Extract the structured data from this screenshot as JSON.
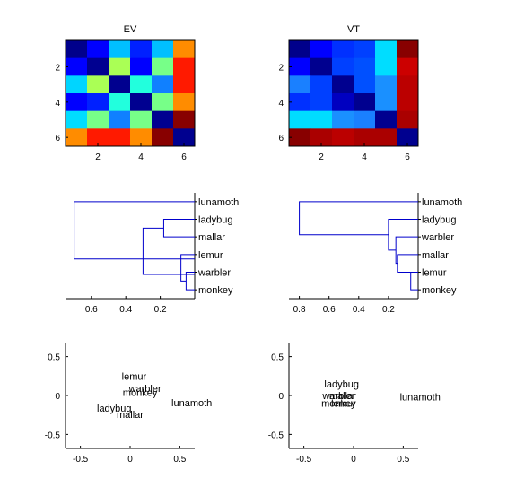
{
  "chart_data": [
    {
      "type": "heatmap",
      "title": "EV",
      "rows": 6,
      "cols": 6,
      "x_ticks": [
        "2",
        "4",
        "6"
      ],
      "y_ticks": [
        "2",
        "4",
        "6"
      ],
      "colors": [
        [
          "#00008b",
          "#0000ff",
          "#00bfff",
          "#0020ff",
          "#00bfff",
          "#ff8c00"
        ],
        [
          "#0000ff",
          "#000090",
          "#aaff55",
          "#0000ff",
          "#77ff88",
          "#ff1a00"
        ],
        [
          "#00d5ff",
          "#aaff55",
          "#00008f",
          "#22ffdd",
          "#1080ff",
          "#ff1a00"
        ],
        [
          "#0000ff",
          "#0020ff",
          "#22ffdd",
          "#000090",
          "#77ff88",
          "#ff8c00"
        ],
        [
          "#00ddff",
          "#77ff88",
          "#1080ff",
          "#77ff88",
          "#000090",
          "#880000"
        ],
        [
          "#ff8c00",
          "#ff1a00",
          "#ff1a00",
          "#ff8c00",
          "#880000",
          "#00008f"
        ]
      ]
    },
    {
      "type": "heatmap",
      "title": "VT",
      "rows": 6,
      "cols": 6,
      "x_ticks": [
        "2",
        "4",
        "6"
      ],
      "y_ticks": [
        "2",
        "4",
        "6"
      ],
      "colors": [
        [
          "#00008b",
          "#0000ff",
          "#0030ff",
          "#0040ff",
          "#00ddff",
          "#880000"
        ],
        [
          "#0000ff",
          "#00008f",
          "#0040ff",
          "#0050ff",
          "#00ddff",
          "#cc0000"
        ],
        [
          "#1a80ff",
          "#0040ff",
          "#00008f",
          "#0050ff",
          "#1a90ff",
          "#bb0000"
        ],
        [
          "#0030ff",
          "#0040ff",
          "#0000c0",
          "#00008f",
          "#1a90ff",
          "#bb0000"
        ],
        [
          "#00ddff",
          "#00ddff",
          "#1a90ff",
          "#1a80ff",
          "#00008f",
          "#aa0000"
        ],
        [
          "#880000",
          "#aa0000",
          "#bb0000",
          "#aa0000",
          "#aa0000",
          "#00008f"
        ]
      ]
    },
    {
      "type": "dendrogram",
      "x_ticks": [
        "0.6",
        "0.4",
        "0.2"
      ],
      "x_tick_values": [
        0.6,
        0.4,
        0.2
      ],
      "xlim": [
        0.75,
        0
      ],
      "leaves": [
        "lunamoth",
        "ladybug",
        "mallar",
        "lemur",
        "warbler",
        "monkey"
      ],
      "links": [
        {
          "h": 0.7,
          "y1": 0,
          "y2": 3.25
        },
        {
          "h": 0.3,
          "y1": 1.5,
          "y2": 4.125
        },
        {
          "h": 0.18,
          "y1": 1,
          "y2": 2
        },
        {
          "h": 0.08,
          "y1": 3,
          "y2": 4.5
        },
        {
          "h": 0.05,
          "y1": 4,
          "y2": 5
        }
      ]
    },
    {
      "type": "dendrogram",
      "x_ticks": [
        "0.8",
        "0.6",
        "0.4",
        "0.2"
      ],
      "x_tick_values": [
        0.8,
        0.6,
        0.4,
        0.2
      ],
      "xlim": [
        0.87,
        0
      ],
      "leaves": [
        "lunamoth",
        "ladybug",
        "warbler",
        "mallar",
        "lemur",
        "monkey"
      ],
      "links": [
        {
          "h": 0.8,
          "y1": 0,
          "y2": 1.875
        },
        {
          "h": 0.2,
          "y1": 1,
          "y2": 2.75
        },
        {
          "h": 0.15,
          "y1": 2,
          "y2": 3.5
        },
        {
          "h": 0.14,
          "y1": 3,
          "y2": 4
        },
        {
          "h": 0.05,
          "y1": 4,
          "y2": 5
        }
      ]
    },
    {
      "type": "scatter",
      "xlim": [
        -0.65,
        0.65
      ],
      "ylim": [
        -0.68,
        0.68
      ],
      "x_ticks": [
        -0.5,
        0,
        0.5
      ],
      "x_tick_labels": [
        "-0.5",
        "0",
        "0.5"
      ],
      "y_ticks": [
        -0.5,
        0,
        0.5
      ],
      "y_tick_labels": [
        "-0.5",
        "0",
        "0.5"
      ],
      "points": [
        {
          "label": "lemur",
          "x": 0.04,
          "y": 0.25
        },
        {
          "label": "warbler",
          "x": 0.15,
          "y": 0.09
        },
        {
          "label": "monkey",
          "x": 0.1,
          "y": 0.04
        },
        {
          "label": "lunamoth",
          "x": 0.62,
          "y": -0.09
        },
        {
          "label": "ladybug",
          "x": -0.16,
          "y": -0.16
        },
        {
          "label": "mallar",
          "x": 0.0,
          "y": -0.24
        }
      ]
    },
    {
      "type": "scatter",
      "xlim": [
        -0.65,
        0.65
      ],
      "ylim": [
        -0.68,
        0.68
      ],
      "x_ticks": [
        -0.5,
        0,
        0.5
      ],
      "x_tick_labels": [
        "-0.5",
        "0",
        "0.5"
      ],
      "y_ticks": [
        -0.5,
        0,
        0.5
      ],
      "y_tick_labels": [
        "-0.5",
        "0",
        "0.5"
      ],
      "points": [
        {
          "label": "ladybug",
          "x": -0.12,
          "y": 0.15
        },
        {
          "label": "warbler",
          "x": -0.15,
          "y": 0.0
        },
        {
          "label": "mallar",
          "x": -0.11,
          "y": 0.0
        },
        {
          "label": "monkey",
          "x": -0.15,
          "y": -0.1
        },
        {
          "label": "lemur",
          "x": -0.1,
          "y": -0.1
        },
        {
          "label": "lunamoth",
          "x": 0.67,
          "y": -0.02
        }
      ]
    }
  ]
}
